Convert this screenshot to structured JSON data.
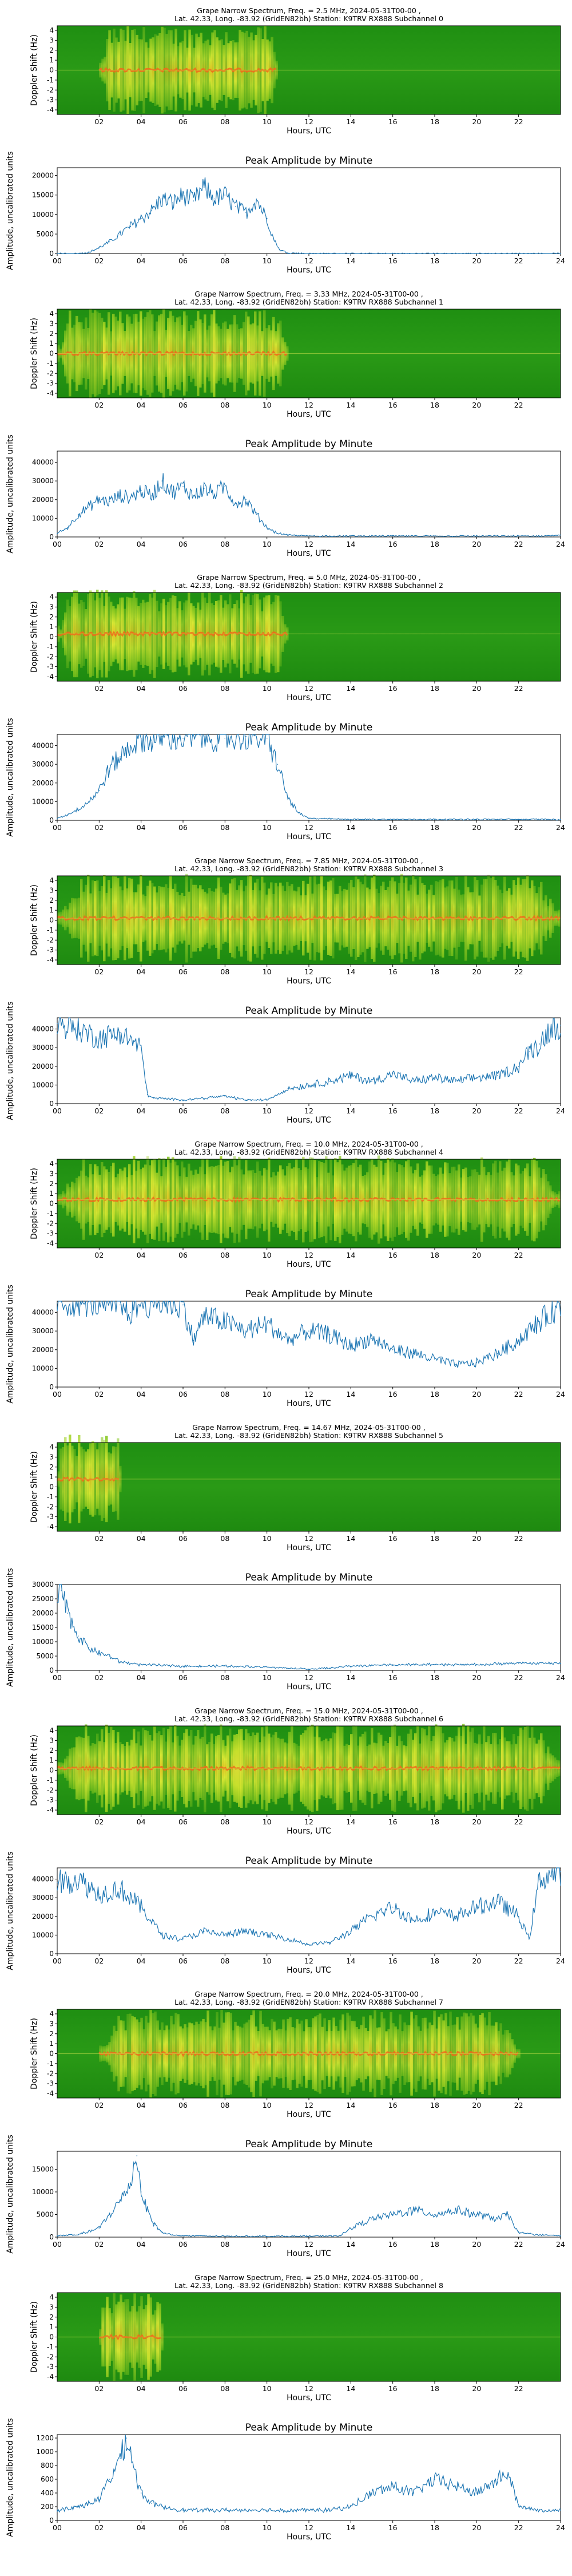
{
  "common": {
    "location_line": "Lat.  42.33, Long. -83.92 (GridEN82bh) Station: K9TRV RX888 Subchannel",
    "spec_ylabel": "Doppler Shift (Hz)",
    "amp_title": "Peak Amplitude by Minute",
    "amp_ylabel": "Amplitude, uncalibrated units",
    "xlabel": "Hours, UTC",
    "spec_yticks": [
      "4",
      "3",
      "2",
      "1",
      "0",
      "-1",
      "-2",
      "-3",
      "-4"
    ],
    "spec_xticks": [
      "02",
      "04",
      "06",
      "08",
      "10",
      "12",
      "14",
      "16",
      "18",
      "20",
      "22"
    ],
    "amp_xticks": [
      "00",
      "02",
      "04",
      "06",
      "08",
      "10",
      "12",
      "14",
      "16",
      "18",
      "20",
      "22",
      "24"
    ]
  },
  "panels": [
    {
      "freq": "2.5",
      "subchannel": "0",
      "spec_title": "Grape Narrow Spectrum, Freq. = 2.5 MHz, 2024-05-31T00-00 ,",
      "amp_ylim": [
        0,
        22000
      ],
      "amp_yticks": [
        0,
        5000,
        10000,
        15000,
        20000
      ]
    },
    {
      "freq": "3.33",
      "subchannel": "1",
      "spec_title": "Grape Narrow Spectrum, Freq. = 3.33 MHz, 2024-05-31T00-00 ,",
      "amp_ylim": [
        0,
        46000
      ],
      "amp_yticks": [
        0,
        10000,
        20000,
        30000,
        40000
      ]
    },
    {
      "freq": "5.0",
      "subchannel": "2",
      "spec_title": "Grape Narrow Spectrum, Freq. = 5.0 MHz, 2024-05-31T00-00 ,",
      "amp_ylim": [
        0,
        46000
      ],
      "amp_yticks": [
        0,
        10000,
        20000,
        30000,
        40000
      ]
    },
    {
      "freq": "7.85",
      "subchannel": "3",
      "spec_title": "Grape Narrow Spectrum, Freq. = 7.85 MHz, 2024-05-31T00-00 ,",
      "amp_ylim": [
        0,
        46000
      ],
      "amp_yticks": [
        0,
        10000,
        20000,
        30000,
        40000
      ]
    },
    {
      "freq": "10.0",
      "subchannel": "4",
      "spec_title": "Grape Narrow Spectrum, Freq. = 10.0 MHz, 2024-05-31T00-00 ,",
      "amp_ylim": [
        0,
        46000
      ],
      "amp_yticks": [
        0,
        10000,
        20000,
        30000,
        40000
      ]
    },
    {
      "freq": "14.67",
      "subchannel": "5",
      "spec_title": "Grape Narrow Spectrum, Freq. = 14.67 MHz, 2024-05-31T00-00 ,",
      "amp_ylim": [
        0,
        30000
      ],
      "amp_yticks": [
        0,
        5000,
        10000,
        15000,
        20000,
        25000,
        30000
      ]
    },
    {
      "freq": "15.0",
      "subchannel": "6",
      "spec_title": "Grape Narrow Spectrum, Freq. = 15.0 MHz, 2024-05-31T00-00 ,",
      "amp_ylim": [
        0,
        46000
      ],
      "amp_yticks": [
        0,
        10000,
        20000,
        30000,
        40000
      ]
    },
    {
      "freq": "20.0",
      "subchannel": "7",
      "spec_title": "Grape Narrow Spectrum, Freq. = 20.0 MHz, 2024-05-31T00-00 ,",
      "amp_ylim": [
        0,
        19000
      ],
      "amp_yticks": [
        0,
        5000,
        10000,
        15000
      ]
    },
    {
      "freq": "25.0",
      "subchannel": "8",
      "spec_title": "Grape Narrow Spectrum, Freq. = 25.0 MHz, 2024-05-31T00-00 ,",
      "amp_ylim": [
        0,
        1250
      ],
      "amp_yticks": [
        0,
        200,
        400,
        600,
        800,
        1000,
        1200
      ]
    }
  ],
  "chart_data": [
    {
      "type": "heatmap",
      "title": "Grape Narrow Spectrum, Freq. = 2.5 MHz, 2024-05-31T00-00 , Lat.  42.33, Long. -83.92 (GridEN82bh) Station: K9TRV RX888 Subchannel 0",
      "xlabel": "Hours, UTC",
      "ylabel": "Doppler Shift (Hz)",
      "xlim": [
        0,
        24
      ],
      "ylim": [
        -4.5,
        4.5
      ],
      "active_hours": [
        2,
        10.5
      ],
      "trace_shift_hz": 0.0
    },
    {
      "type": "line",
      "title": "Peak Amplitude by Minute",
      "xlabel": "Hours, UTC",
      "ylabel": "Amplitude, uncalibrated units",
      "xlim": [
        0,
        24
      ],
      "ylim": [
        0,
        22000
      ],
      "x": [
        0,
        1,
        1.5,
        2,
        2.5,
        3,
        3.5,
        4,
        4.5,
        5,
        5.5,
        6,
        6.5,
        7,
        7.5,
        8,
        8.5,
        9,
        9.5,
        10,
        10.3,
        10.6,
        11,
        12,
        14,
        16,
        18,
        20,
        22,
        24
      ],
      "y": [
        0,
        0,
        300,
        1500,
        3000,
        5000,
        7000,
        9000,
        11000,
        14000,
        13000,
        15000,
        13500,
        17000,
        14000,
        15000,
        12000,
        10500,
        14000,
        9000,
        4000,
        1000,
        200,
        0,
        0,
        0,
        0,
        0,
        0,
        0
      ]
    },
    {
      "type": "heatmap",
      "title": "Grape Narrow Spectrum, Freq. = 3.33 MHz, 2024-05-31T00-00 , Lat.  42.33, Long. -83.92 (GridEN82bh) Station: K9TRV RX888 Subchannel 1",
      "xlabel": "Hours, UTC",
      "ylabel": "Doppler Shift (Hz)",
      "xlim": [
        0,
        24
      ],
      "ylim": [
        -4.5,
        4.5
      ],
      "active_hours": [
        0,
        11
      ],
      "trace_shift_hz": 0.0
    },
    {
      "type": "line",
      "title": "Peak Amplitude by Minute",
      "xlabel": "Hours, UTC",
      "ylabel": "Amplitude, uncalibrated units",
      "xlim": [
        0,
        24
      ],
      "ylim": [
        0,
        46000
      ],
      "x": [
        0,
        0.5,
        1,
        1.5,
        2,
        2.5,
        3,
        3.5,
        4,
        4.5,
        5,
        5.5,
        6,
        6.5,
        7,
        7.5,
        8,
        8.5,
        9,
        9.5,
        10,
        10.5,
        11,
        12,
        14,
        16,
        18,
        20,
        22,
        23,
        24
      ],
      "y": [
        2000,
        5000,
        12000,
        16000,
        20000,
        19000,
        22000,
        21000,
        25000,
        22000,
        30000,
        24000,
        27000,
        22000,
        26000,
        23000,
        27000,
        18000,
        20000,
        12000,
        5000,
        2000,
        1000,
        500,
        500,
        500,
        500,
        500,
        500,
        500,
        1000
      ]
    },
    {
      "type": "heatmap",
      "title": "Grape Narrow Spectrum, Freq. = 5.0 MHz, 2024-05-31T00-00 , Lat.  42.33, Long. -83.92 (GridEN82bh) Station: K9TRV RX888 Subchannel 2",
      "xlabel": "Hours, UTC",
      "ylabel": "Doppler Shift (Hz)",
      "xlim": [
        0,
        24
      ],
      "ylim": [
        -4.5,
        4.5
      ],
      "active_hours": [
        0,
        11
      ],
      "trace_shift_hz": 0.3
    },
    {
      "type": "line",
      "title": "Peak Amplitude by Minute",
      "xlabel": "Hours, UTC",
      "ylabel": "Amplitude, uncalibrated units",
      "xlim": [
        0,
        24
      ],
      "ylim": [
        0,
        46000
      ],
      "x": [
        0,
        0.5,
        1,
        1.5,
        2,
        2.5,
        3,
        3.5,
        4,
        4.5,
        5,
        6,
        7,
        8,
        9,
        10,
        10.5,
        11,
        11.5,
        12,
        14,
        16,
        18,
        20,
        22,
        24
      ],
      "y": [
        1000,
        3000,
        6000,
        10000,
        16000,
        28000,
        34000,
        40000,
        44000,
        43000,
        45000,
        44000,
        45000,
        44000,
        45000,
        44000,
        30000,
        12000,
        4000,
        1000,
        500,
        500,
        500,
        500,
        500,
        500
      ]
    },
    {
      "type": "heatmap",
      "title": "Grape Narrow Spectrum, Freq. = 7.85 MHz, 2024-05-31T00-00 , Lat.  42.33, Long. -83.92 (GridEN82bh) Station: K9TRV RX888 Subchannel 3",
      "xlabel": "Hours, UTC",
      "ylabel": "Doppler Shift (Hz)",
      "xlim": [
        0,
        24
      ],
      "ylim": [
        -4.5,
        4.5
      ],
      "active_hours": [
        0,
        24
      ],
      "trace_shift_hz": 0.2
    },
    {
      "type": "line",
      "title": "Peak Amplitude by Minute",
      "xlabel": "Hours, UTC",
      "ylabel": "Amplitude, uncalibrated units",
      "xlim": [
        0,
        24
      ],
      "ylim": [
        0,
        46000
      ],
      "x": [
        0,
        1,
        2,
        3,
        4,
        4.3,
        4.6,
        6,
        8,
        9,
        10,
        11,
        12,
        13,
        14,
        15,
        16,
        17,
        18,
        19,
        20,
        21,
        22,
        22.5,
        23,
        23.5,
        24
      ],
      "y": [
        43000,
        40000,
        35000,
        38000,
        30000,
        5000,
        3000,
        2000,
        4000,
        2000,
        2000,
        8000,
        10000,
        12000,
        15000,
        12000,
        16000,
        12000,
        14000,
        12000,
        14000,
        15000,
        20000,
        28000,
        32000,
        40000,
        42000
      ]
    },
    {
      "type": "heatmap",
      "title": "Grape Narrow Spectrum, Freq. = 10.0 MHz, 2024-05-31T00-00 , Lat.  42.33, Long. -83.92 (GridEN82bh) Station: K9TRV RX888 Subchannel 4",
      "xlabel": "Hours, UTC",
      "ylabel": "Doppler Shift (Hz)",
      "xlim": [
        0,
        24
      ],
      "ylim": [
        -4.5,
        4.5
      ],
      "active_hours": [
        0,
        24
      ],
      "trace_shift_hz": 0.4
    },
    {
      "type": "line",
      "title": "Peak Amplitude by Minute",
      "xlabel": "Hours, UTC",
      "ylabel": "Amplitude, uncalibrated units",
      "xlim": [
        0,
        24
      ],
      "ylim": [
        0,
        46000
      ],
      "x": [
        0,
        1,
        2,
        3,
        3.5,
        4,
        5,
        6,
        6.5,
        7,
        8,
        9,
        10,
        11,
        12,
        13,
        14,
        15,
        16,
        17,
        18,
        19,
        20,
        21,
        22,
        23,
        24
      ],
      "y": [
        45000,
        45000,
        45000,
        44000,
        40000,
        45000,
        45000,
        44000,
        25000,
        38000,
        35000,
        30000,
        34000,
        25000,
        30000,
        28000,
        22000,
        26000,
        20000,
        18000,
        15000,
        12000,
        13000,
        18000,
        25000,
        35000,
        44000
      ]
    },
    {
      "type": "heatmap",
      "title": "Grape Narrow Spectrum, Freq. = 14.67 MHz, 2024-05-31T00-00 , Lat.  42.33, Long. -83.92 (GridEN82bh) Station: K9TRV RX888 Subchannel 5",
      "xlabel": "Hours, UTC",
      "ylabel": "Doppler Shift (Hz)",
      "xlim": [
        0,
        24
      ],
      "ylim": [
        -4.5,
        4.5
      ],
      "active_hours": [
        0,
        3
      ],
      "trace_shift_hz": 0.8
    },
    {
      "type": "line",
      "title": "Peak Amplitude by Minute",
      "xlabel": "Hours, UTC",
      "ylabel": "Amplitude, uncalibrated units",
      "xlim": [
        0,
        24
      ],
      "ylim": [
        0,
        30000
      ],
      "x": [
        0,
        0.2,
        0.5,
        1,
        1.5,
        2,
        2.5,
        3,
        4,
        6,
        8,
        10,
        11,
        12,
        13,
        14,
        16,
        18,
        20,
        22,
        24
      ],
      "y": [
        25000,
        28000,
        20000,
        12000,
        8000,
        6000,
        5000,
        3000,
        2000,
        1500,
        1500,
        1200,
        800,
        500,
        800,
        1500,
        2000,
        2000,
        2000,
        2500,
        2500
      ]
    },
    {
      "type": "heatmap",
      "title": "Grape Narrow Spectrum, Freq. = 15.0 MHz, 2024-05-31T00-00 , Lat.  42.33, Long. -83.92 (GridEN82bh) Station: K9TRV RX888 Subchannel 6",
      "xlabel": "Hours, UTC",
      "ylabel": "Doppler Shift (Hz)",
      "xlim": [
        0,
        24
      ],
      "ylim": [
        -4.5,
        4.5
      ],
      "active_hours": [
        0,
        24
      ],
      "trace_shift_hz": 0.2
    },
    {
      "type": "line",
      "title": "Peak Amplitude by Minute",
      "xlabel": "Hours, UTC",
      "ylabel": "Amplitude, uncalibrated units",
      "xlim": [
        0,
        24
      ],
      "ylim": [
        0,
        46000
      ],
      "x": [
        0,
        1,
        2,
        3,
        4,
        5,
        6,
        7,
        8,
        9,
        10,
        11,
        12,
        13,
        14,
        15,
        16,
        17,
        18,
        19,
        20,
        21,
        22,
        22.5,
        23,
        24
      ],
      "y": [
        38000,
        40000,
        32000,
        35000,
        25000,
        10000,
        8000,
        12000,
        10000,
        12000,
        10000,
        8000,
        5000,
        6000,
        12000,
        20000,
        25000,
        18000,
        22000,
        20000,
        25000,
        28000,
        20000,
        8000,
        40000,
        44000
      ]
    },
    {
      "type": "heatmap",
      "title": "Grape Narrow Spectrum, Freq. = 20.0 MHz, 2024-05-31T00-00 , Lat.  42.33, Long. -83.92 (GridEN82bh) Station: K9TRV RX888 Subchannel 7",
      "xlabel": "Hours, UTC",
      "ylabel": "Doppler Shift (Hz)",
      "xlim": [
        0,
        24
      ],
      "ylim": [
        -4.5,
        4.5
      ],
      "active_hours": [
        2,
        22
      ],
      "trace_shift_hz": 0.0
    },
    {
      "type": "line",
      "title": "Peak Amplitude by Minute",
      "xlabel": "Hours, UTC",
      "ylabel": "Amplitude, uncalibrated units",
      "xlim": [
        0,
        24
      ],
      "ylim": [
        0,
        19000
      ],
      "x": [
        0,
        1,
        2,
        2.5,
        3,
        3.5,
        3.8,
        4,
        4.3,
        4.6,
        5,
        5.5,
        6,
        8,
        10,
        12,
        13.5,
        14,
        15,
        16,
        17,
        18,
        19,
        20,
        21,
        21.5,
        22,
        23,
        24
      ],
      "y": [
        300,
        500,
        2000,
        5000,
        8000,
        12000,
        18000,
        10000,
        6000,
        3000,
        1000,
        500,
        300,
        200,
        200,
        200,
        300,
        2000,
        4000,
        5000,
        6000,
        5000,
        6000,
        5000,
        4000,
        5000,
        1000,
        500,
        300
      ]
    },
    {
      "type": "heatmap",
      "title": "Grape Narrow Spectrum, Freq. = 25.0 MHz, 2024-05-31T00-00 , Lat.  42.33, Long. -83.92 (GridEN82bh) Station: K9TRV RX888 Subchannel 8",
      "xlabel": "Hours, UTC",
      "ylabel": "Doppler Shift (Hz)",
      "xlim": [
        0,
        24
      ],
      "ylim": [
        -4.5,
        4.5
      ],
      "active_hours": [
        2,
        5
      ],
      "trace_shift_hz": 0.0
    },
    {
      "type": "line",
      "title": "Peak Amplitude by Minute",
      "xlabel": "Hours, UTC",
      "ylabel": "Amplitude, uncalibrated units",
      "xlim": [
        0,
        24
      ],
      "ylim": [
        0,
        1250
      ],
      "x": [
        0,
        1,
        2,
        2.5,
        3,
        3.3,
        3.5,
        3.8,
        4,
        4.5,
        5,
        6,
        8,
        10,
        12,
        13,
        14,
        15,
        16,
        17,
        18,
        19,
        20,
        21,
        21.5,
        22,
        23,
        24
      ],
      "y": [
        150,
        200,
        300,
        600,
        900,
        1200,
        1000,
        600,
        400,
        250,
        200,
        150,
        150,
        150,
        150,
        150,
        200,
        400,
        500,
        400,
        600,
        500,
        400,
        600,
        700,
        200,
        150,
        150
      ]
    }
  ]
}
